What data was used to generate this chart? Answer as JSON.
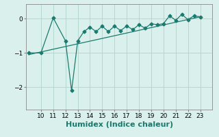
{
  "xlabel": "Humidex (Indice chaleur)",
  "background_color": "#daf0ec",
  "line_color": "#1a7a6e",
  "grid_color": "#aed4ce",
  "x_ticks": [
    10,
    11,
    12,
    13,
    14,
    15,
    16,
    17,
    18,
    19,
    20,
    21,
    22,
    23
  ],
  "y_ticks": [
    0,
    -1,
    -2
  ],
  "ylim": [
    -2.65,
    0.42
  ],
  "xlim": [
    8.8,
    24.0
  ],
  "humidex_x": [
    9,
    10,
    11,
    12,
    12.5,
    13,
    13.5,
    14,
    14.5,
    15,
    15.5,
    16,
    16.5,
    17,
    17.5,
    18,
    18.5,
    19,
    19.5,
    20,
    20.5,
    21,
    21.5,
    22,
    22.5,
    23
  ],
  "humidex_y": [
    -1.0,
    -1.0,
    0.02,
    -0.65,
    -2.1,
    -0.65,
    -0.38,
    -0.25,
    -0.38,
    -0.22,
    -0.38,
    -0.22,
    -0.35,
    -0.22,
    -0.32,
    -0.18,
    -0.28,
    -0.15,
    -0.18,
    -0.15,
    0.08,
    -0.05,
    0.12,
    -0.03,
    0.08,
    0.05
  ],
  "trend_x": [
    9,
    23
  ],
  "trend_y": [
    -1.05,
    0.05
  ],
  "marker": "D",
  "marker_size": 2.5,
  "line_width": 0.9,
  "xlabel_fontsize": 8,
  "tick_fontsize": 6.5
}
